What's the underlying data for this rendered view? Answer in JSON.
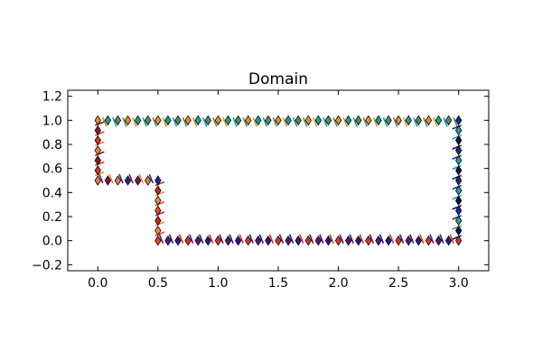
{
  "chart_data": {
    "type": "scatter",
    "title": "Domain",
    "xlabel": "",
    "ylabel": "",
    "xlim": [
      -0.25,
      3.25
    ],
    "ylim": [
      -0.25,
      1.25
    ],
    "xticks": [
      0.0,
      0.5,
      1.0,
      1.5,
      2.0,
      2.5,
      3.0
    ],
    "xtick_labels": [
      "0.0",
      "0.5",
      "1.0",
      "1.5",
      "2.0",
      "2.5",
      "3.0"
    ],
    "yticks": [
      -0.2,
      0.0,
      0.2,
      0.4,
      0.6,
      0.8,
      1.0,
      1.2
    ],
    "ytick_labels": [
      "−0.2",
      "0.0",
      "0.2",
      "0.4",
      "0.6",
      "0.8",
      "1.0",
      "1.2"
    ],
    "grid": false,
    "legend": false,
    "boundary_polygon": [
      [
        0,
        1
      ],
      [
        3,
        1
      ],
      [
        3,
        0
      ],
      [
        0.5,
        0
      ],
      [
        0.5,
        0.5
      ],
      [
        0,
        0.5
      ]
    ],
    "segments": [
      {
        "from": [
          0,
          1
        ],
        "to": [
          3,
          1
        ],
        "points": 36,
        "colors": [
          "#e8902a",
          "#1aa398",
          "#5c8a6a"
        ]
      },
      {
        "from": [
          3,
          1
        ],
        "to": [
          3,
          0
        ],
        "points": 12,
        "colors": [
          "#1c2b8c",
          "#2a9d9a",
          "#0d0f5c"
        ]
      },
      {
        "from": [
          3,
          0
        ],
        "to": [
          0.5,
          0
        ],
        "points": 30,
        "colors": [
          "#d9362b",
          "#2a1a8c",
          "#5a1a6a"
        ]
      },
      {
        "from": [
          0.5,
          0
        ],
        "to": [
          0.5,
          0.5
        ],
        "points": 6,
        "colors": [
          "#e8472b",
          "#f08a3a",
          "#c02a1a"
        ]
      },
      {
        "from": [
          0.5,
          0.5
        ],
        "to": [
          0,
          0.5
        ],
        "points": 6,
        "colors": [
          "#1f2a9a",
          "#f07a3a",
          "#7a1a4a"
        ]
      },
      {
        "from": [
          0,
          0.5
        ],
        "to": [
          0,
          1
        ],
        "points": 6,
        "colors": [
          "#f0823a",
          "#d9362b",
          "#8a1a2a"
        ]
      }
    ],
    "marker": "diamond"
  }
}
